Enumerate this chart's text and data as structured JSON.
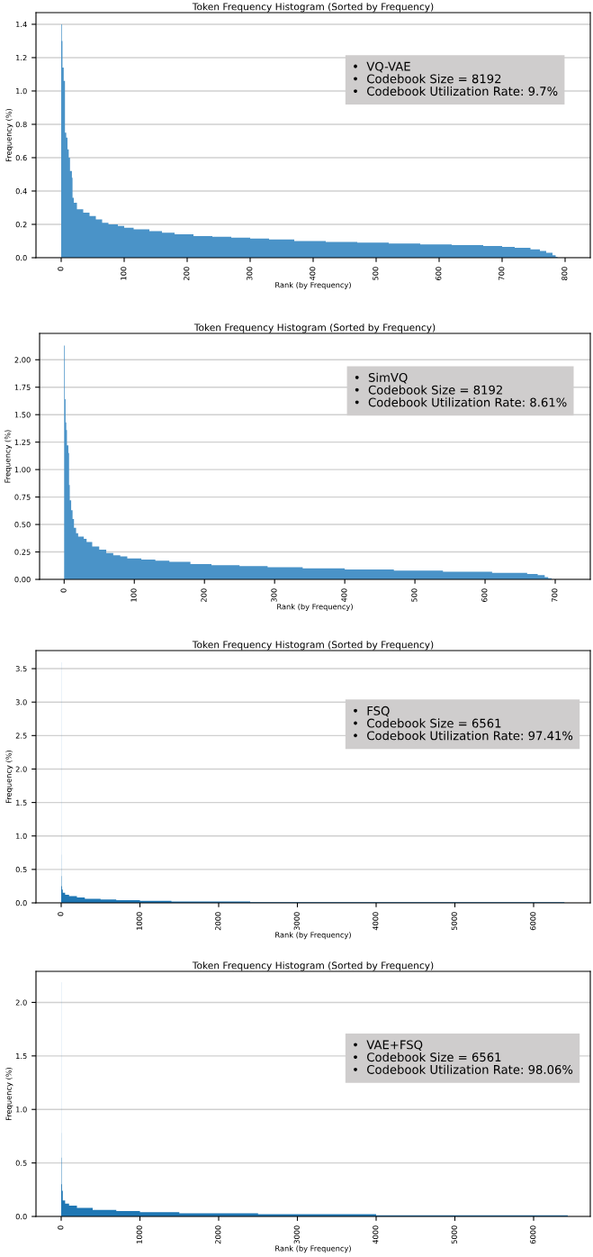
{
  "chart_data": [
    {
      "type": "histogram",
      "title": "Token Frequency Histogram (Sorted by Frequency)",
      "xlabel": "Rank (by Frequency)",
      "ylabel": "Frequency (%)",
      "bins": [
        0,
        1,
        2,
        4,
        6,
        8,
        10,
        12,
        14,
        17,
        18,
        20,
        25,
        35,
        45,
        55,
        65,
        75,
        90,
        100,
        115,
        140,
        160,
        180,
        210,
        240,
        270,
        300,
        330,
        370,
        420,
        470,
        520,
        570,
        620,
        670,
        700,
        720,
        745,
        760,
        770,
        780,
        785,
        788
      ],
      "values": [
        1.4,
        1.3,
        1.14,
        1.06,
        0.75,
        0.72,
        0.65,
        0.6,
        0.52,
        0.48,
        0.36,
        0.33,
        0.29,
        0.27,
        0.25,
        0.23,
        0.21,
        0.2,
        0.19,
        0.18,
        0.17,
        0.16,
        0.15,
        0.14,
        0.13,
        0.125,
        0.12,
        0.115,
        0.11,
        0.1,
        0.095,
        0.09,
        0.085,
        0.08,
        0.075,
        0.07,
        0.065,
        0.06,
        0.05,
        0.04,
        0.03,
        0.015,
        0.005
      ],
      "color": "#4a93c8",
      "xlim": [
        -40,
        840
      ],
      "ylim": [
        0,
        1.47
      ],
      "xticks": [
        0,
        100,
        200,
        300,
        400,
        500,
        600,
        700,
        800
      ],
      "yticks": [
        {
          "value": 0,
          "label": "0.0"
        },
        0.2,
        0.4,
        0.6,
        0.8,
        {
          "value": 1,
          "label": "1.0"
        },
        1.2,
        1.4
      ],
      "grid": "y",
      "annotations": [
        "•  VQ-VAE",
        "•  Codebook Size = 8192",
        "•  Codebook Utilization Rate: 9.7%"
      ]
    },
    {
      "type": "histogram",
      "title": "Token Frequency Histogram (Sorted by Frequency)",
      "xlabel": "Rank (by Frequency)",
      "ylabel": "Frequency (%)",
      "bins": [
        0,
        1,
        2,
        3,
        4,
        6,
        7,
        8,
        10,
        12,
        14,
        17,
        20,
        28,
        32,
        40,
        50,
        60,
        70,
        80,
        90,
        110,
        130,
        150,
        180,
        210,
        250,
        290,
        340,
        400,
        470,
        540,
        610,
        660,
        675,
        685,
        690,
        695
      ],
      "values": [
        2.13,
        1.64,
        1.43,
        1.36,
        1.22,
        1.15,
        0.86,
        0.72,
        0.63,
        0.55,
        0.47,
        0.42,
        0.39,
        0.37,
        0.34,
        0.3,
        0.27,
        0.24,
        0.22,
        0.21,
        0.19,
        0.18,
        0.17,
        0.16,
        0.14,
        0.13,
        0.12,
        0.11,
        0.1,
        0.09,
        0.08,
        0.07,
        0.06,
        0.05,
        0.04,
        0.02,
        0.01
      ],
      "color": "#4a93c8",
      "xlim": [
        -35,
        750
      ],
      "ylim": [
        0,
        2.24
      ],
      "xticks": [
        0,
        100,
        200,
        300,
        400,
        500,
        600,
        700
      ],
      "yticks": [
        {
          "value": 0,
          "label": "0.00"
        },
        {
          "value": 0.25,
          "label": "0.25"
        },
        {
          "value": 0.5,
          "label": "0.50"
        },
        {
          "value": 0.75,
          "label": "0.75"
        },
        {
          "value": 1,
          "label": "1.00"
        },
        {
          "value": 1.25,
          "label": "1.25"
        },
        {
          "value": 1.5,
          "label": "1.50"
        },
        {
          "value": 1.75,
          "label": "1.75"
        },
        {
          "value": 2,
          "label": "2.00"
        }
      ],
      "grid": "y",
      "annotations": [
        "•  SimVQ",
        "•  Codebook Size = 8192",
        "•  Codebook Utilization Rate: 8.61%"
      ]
    },
    {
      "type": "histogram",
      "title": "Token Frequency Histogram (Sorted by Frequency)",
      "xlabel": "Rank (by Frequency)",
      "ylabel": "Frequency (%)",
      "bins": [
        0,
        1,
        2,
        5,
        10,
        20,
        50,
        100,
        200,
        300,
        500,
        700,
        1000,
        1400,
        1900,
        2400,
        3000,
        4000,
        5000,
        6391
      ],
      "values": [
        3.6,
        0.72,
        0.4,
        0.25,
        0.2,
        0.15,
        0.12,
        0.1,
        0.08,
        0.06,
        0.05,
        0.04,
        0.03,
        0.02,
        0.02,
        0.01,
        0.01,
        0.01,
        0.01
      ],
      "color": "#1f77b4",
      "xlim": [
        -320,
        6720
      ],
      "ylim": [
        0,
        3.77
      ],
      "xticks": [
        0,
        1000,
        2000,
        3000,
        4000,
        5000,
        6000
      ],
      "yticks": [
        {
          "value": 0,
          "label": "0.0"
        },
        {
          "value": 0.5,
          "label": "0.5"
        },
        {
          "value": 1,
          "label": "1.0"
        },
        {
          "value": 1.5,
          "label": "1.5"
        },
        {
          "value": 2,
          "label": "2.0"
        },
        {
          "value": 2.5,
          "label": "2.5"
        },
        {
          "value": 3,
          "label": "3.0"
        },
        {
          "value": 3.5,
          "label": "3.5"
        }
      ],
      "grid": "y",
      "annotations": [
        "•  FSQ",
        "•  Codebook Size = 6561",
        "•  Codebook Utilization Rate: 97.41%"
      ]
    },
    {
      "type": "histogram",
      "title": "Token Frequency Histogram (Sorted by Frequency)",
      "xlabel": "Rank (by Frequency)",
      "ylabel": "Frequency (%)",
      "bins": [
        0,
        1,
        2,
        5,
        10,
        20,
        50,
        100,
        200,
        400,
        700,
        1000,
        1500,
        2000,
        2500,
        3000,
        4000,
        5000,
        6434
      ],
      "values": [
        2.19,
        0.78,
        0.55,
        0.3,
        0.24,
        0.15,
        0.12,
        0.1,
        0.08,
        0.06,
        0.05,
        0.04,
        0.03,
        0.03,
        0.02,
        0.02,
        0.01,
        0.01
      ],
      "color": "#1f77b4",
      "xlim": [
        -320,
        6720
      ],
      "ylim": [
        0,
        2.29
      ],
      "xticks": [
        0,
        1000,
        2000,
        3000,
        4000,
        5000,
        6000
      ],
      "yticks": [
        {
          "value": 0,
          "label": "0.0"
        },
        {
          "value": 0.5,
          "label": "0.5"
        },
        {
          "value": 1,
          "label": "1.0"
        },
        {
          "value": 1.5,
          "label": "1.5"
        },
        {
          "value": 2,
          "label": "2.0"
        }
      ],
      "grid": "y",
      "annotations": [
        "•  VAE+FSQ",
        "•  Codebook Size = 6561",
        "•  Codebook Utilization Rate: 98.06%"
      ]
    }
  ]
}
